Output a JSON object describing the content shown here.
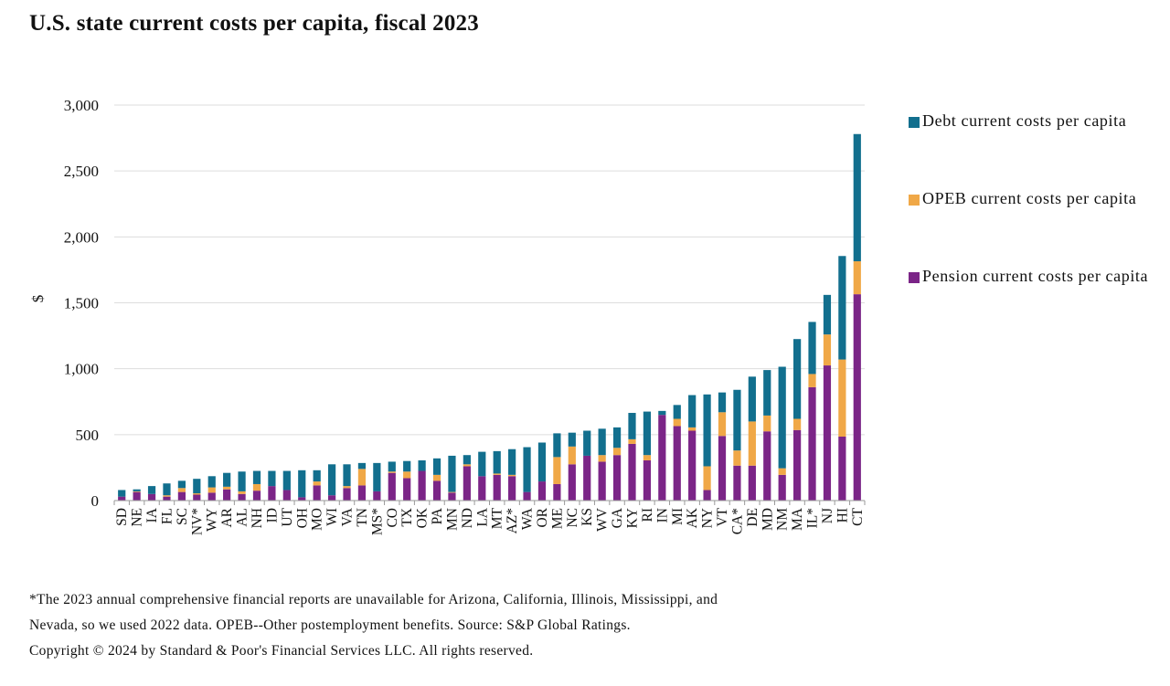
{
  "title": "U.S. state current costs per capita, fiscal 2023",
  "footnote": {
    "line1": "*The 2023 annual comprehensive financial reports are unavailable for Arizona, California, Illinois, Mississippi, and",
    "line2": "Nevada, so we used 2022 data.  OPEB--Other postemployment benefits. Source: S&P Global Ratings.",
    "line3": "Copyright © 2024 by Standard & Poor's Financial Services LLC. All rights reserved."
  },
  "colors": {
    "debt": "#126f8e",
    "opeb": "#f0a847",
    "pension": "#7b2587",
    "grid": "#dddddd",
    "axis": "#999999"
  },
  "chart_data": {
    "type": "bar",
    "stacked": true,
    "ylabel": "$",
    "ylim": [
      0,
      3000
    ],
    "yticks": [
      0,
      500,
      1000,
      1500,
      2000,
      2500,
      3000
    ],
    "ytick_labels": [
      "0",
      "500",
      "1,000",
      "1,500",
      "2,000",
      "2,500",
      "3,000"
    ],
    "grid": true,
    "legend_position": "right",
    "categories": [
      "SD",
      "NE",
      "IA",
      "FL",
      "SC",
      "NV*",
      "WY",
      "AR",
      "AL",
      "NH",
      "ID",
      "UT",
      "OH",
      "MO",
      "WI",
      "VA",
      "TN",
      "MS*",
      "CO",
      "TX",
      "OK",
      "PA",
      "MN",
      "ND",
      "LA",
      "MT",
      "AZ*",
      "WA",
      "OR",
      "ME",
      "NC",
      "KS",
      "WV",
      "GA",
      "KY",
      "RI",
      "IN",
      "MI",
      "AK",
      "NY",
      "VT",
      "CA*",
      "DE",
      "MD",
      "NM",
      "MA",
      "IL*",
      "NJ",
      "HI",
      "CT"
    ],
    "series": [
      {
        "name": "Pension current costs per capita",
        "key": "pension",
        "values": [
          30,
          65,
          50,
          30,
          65,
          45,
          60,
          85,
          50,
          75,
          110,
          80,
          25,
          115,
          40,
          95,
          115,
          70,
          210,
          170,
          225,
          150,
          60,
          260,
          185,
          195,
          185,
          65,
          145,
          125,
          275,
          340,
          295,
          345,
          430,
          305,
          650,
          565,
          530,
          80,
          490,
          265,
          265,
          525,
          195,
          535,
          860,
          1025,
          485,
          1565
        ]
      },
      {
        "name": "OPEB current costs per capita",
        "key": "opeb",
        "values": [
          0,
          5,
          0,
          10,
          30,
          10,
          40,
          20,
          20,
          50,
          0,
          0,
          0,
          30,
          0,
          15,
          125,
          0,
          10,
          50,
          0,
          45,
          5,
          15,
          0,
          10,
          10,
          0,
          0,
          205,
          135,
          0,
          50,
          55,
          35,
          40,
          0,
          55,
          25,
          180,
          180,
          115,
          335,
          120,
          50,
          85,
          100,
          235,
          585,
          250
        ]
      },
      {
        "name": "Debt current costs per capita",
        "key": "debt",
        "values": [
          50,
          15,
          60,
          90,
          55,
          110,
          85,
          105,
          150,
          100,
          115,
          145,
          205,
          85,
          235,
          165,
          45,
          215,
          75,
          80,
          80,
          125,
          275,
          70,
          185,
          170,
          195,
          340,
          295,
          180,
          105,
          190,
          200,
          155,
          200,
          330,
          30,
          105,
          245,
          545,
          150,
          460,
          340,
          345,
          770,
          605,
          395,
          300,
          785,
          965
        ]
      }
    ]
  },
  "legend": [
    {
      "key": "debt",
      "label": "Debt current costs per capita"
    },
    {
      "key": "opeb",
      "label": "OPEB current costs per capita"
    },
    {
      "key": "pension",
      "label": "Pension current costs per capita"
    }
  ]
}
